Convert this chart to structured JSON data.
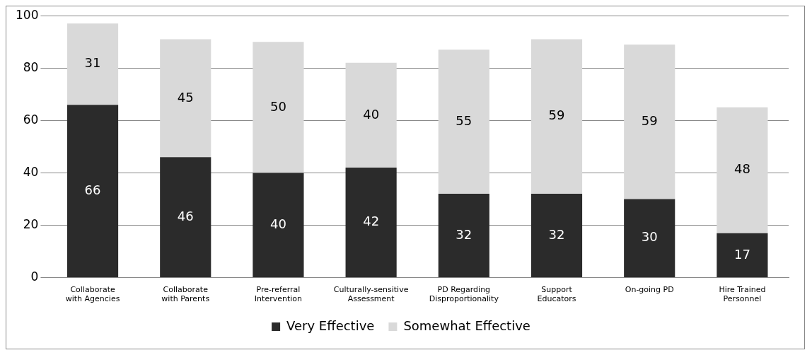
{
  "chart_data": {
    "type": "bar",
    "stacked": true,
    "categories": [
      "Collaborate with Agencies",
      "Collaborate with Parents",
      "Pre-referral Intervention",
      "Culturally-sensitive Assessment",
      "PD Regarding Disproportionality",
      "Support Educators",
      "On-going PD",
      "Hire Trained Personnel"
    ],
    "series": [
      {
        "name": "Very Effective",
        "color": "#2b2b2b",
        "values": [
          66,
          46,
          40,
          42,
          32,
          32,
          30,
          17
        ]
      },
      {
        "name": "Somewhat Effective",
        "color": "#d9d9d9",
        "values": [
          31,
          45,
          50,
          40,
          55,
          59,
          59,
          48
        ]
      }
    ],
    "ylim": [
      0,
      100
    ],
    "yticks": [
      0,
      20,
      40,
      60,
      80,
      100
    ],
    "grid": "y",
    "legend": "bottom",
    "data_labels": true
  }
}
